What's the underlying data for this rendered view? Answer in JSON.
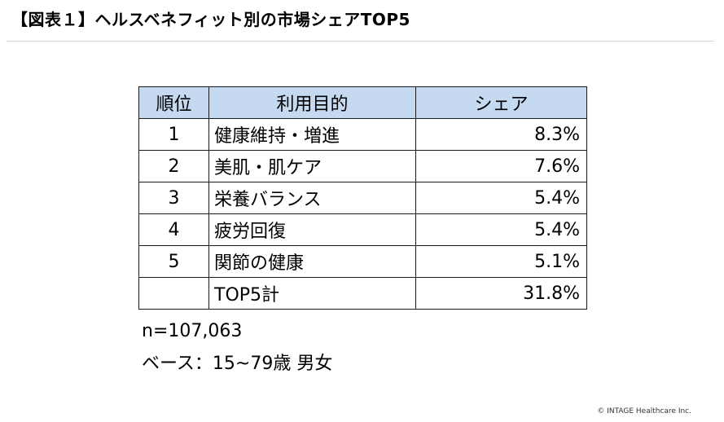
{
  "title": "【図表１】ヘルスベネフィット別の市場シェアTOP5",
  "table": {
    "headers": {
      "rank": "順位",
      "purpose": "利用目的",
      "share": "シェア"
    },
    "rows": [
      {
        "rank": "1",
        "purpose": "健康維持・増進",
        "share": "8.3%"
      },
      {
        "rank": "2",
        "purpose": "美肌・肌ケア",
        "share": "7.6%"
      },
      {
        "rank": "3",
        "purpose": "栄養バランス",
        "share": "5.4%"
      },
      {
        "rank": "4",
        "purpose": "疲労回復",
        "share": "5.4%"
      },
      {
        "rank": "5",
        "purpose": "関節の健康",
        "share": "5.1%"
      }
    ],
    "total": {
      "label": "TOP5計",
      "share": "31.8%"
    }
  },
  "notes": {
    "sample_size": "n=107,063",
    "base": "ベース：15~79歳  男女"
  },
  "copyright": "© INTAGE Healthcare Inc."
}
